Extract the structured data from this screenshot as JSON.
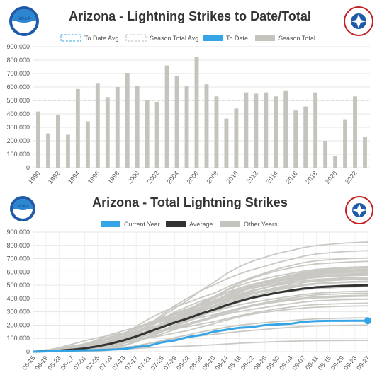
{
  "logos": {
    "noaa": "NOAA",
    "nws": "NATIONAL WEATHER SERVICE"
  },
  "colors": {
    "season": "#c4c3bc",
    "todate": "#35a5e5",
    "avg": "#333333",
    "other": "#c9c8c2",
    "avgline": "#bbbbbb",
    "grid": "#e6e6e6"
  },
  "chart_data": [
    {
      "type": "bar",
      "title": "Arizona - Lightning Strikes to Date/Total",
      "legend": [
        "To Date Avg",
        "Season Total Avg",
        "To Date",
        "Season Total"
      ],
      "legend_placement": "top",
      "ylim": [
        0,
        900000
      ],
      "yticks": [
        "0",
        "100,000",
        "200,000",
        "300,000",
        "400,000",
        "500,000",
        "600,000",
        "700,000",
        "800,000",
        "900,000"
      ],
      "xtick_labels": [
        "1990",
        "1992",
        "1994",
        "1996",
        "1998",
        "2000",
        "2002",
        "2004",
        "2006",
        "2008",
        "2010",
        "2012",
        "2014",
        "2016",
        "2018",
        "2020",
        "2022"
      ],
      "categories": [
        1990,
        1991,
        1992,
        1993,
        1994,
        1995,
        1996,
        1997,
        1998,
        1999,
        2000,
        2001,
        2002,
        2003,
        2004,
        2005,
        2006,
        2007,
        2008,
        2009,
        2010,
        2011,
        2012,
        2013,
        2014,
        2015,
        2016,
        2017,
        2018,
        2019,
        2020,
        2021,
        2022,
        2023
      ],
      "series": [
        {
          "name": "Season Total",
          "values": [
            418000,
            255000,
            395000,
            245000,
            585000,
            345000,
            630000,
            525000,
            600000,
            705000,
            610000,
            500000,
            490000,
            760000,
            680000,
            605000,
            825000,
            620000,
            530000,
            365000,
            440000,
            560000,
            550000,
            560000,
            530000,
            575000,
            425000,
            455000,
            560000,
            200000,
            85000,
            360000,
            530000,
            228000
          ]
        }
      ],
      "season_total_avg": 500000,
      "grid": true
    },
    {
      "type": "line",
      "title": "Arizona - Total Lightning Strikes",
      "legend": [
        "Current Year",
        "Average",
        "Other Years"
      ],
      "legend_placement": "top",
      "ylim": [
        0,
        900000
      ],
      "yticks": [
        "0",
        "100,000",
        "200,000",
        "300,000",
        "400,000",
        "500,000",
        "600,000",
        "700,000",
        "800,000",
        "900,000"
      ],
      "xtick_labels": [
        "06-15",
        "06-19",
        "06-23",
        "06-27",
        "07-01",
        "07-05",
        "07-09",
        "07-13",
        "07-17",
        "07-21",
        "07-25",
        "07-29",
        "08-02",
        "08-06",
        "08-10",
        "08-14",
        "08-18",
        "08-22",
        "08-26",
        "08-30",
        "09-03",
        "09-07",
        "09-11",
        "09-15",
        "09-19",
        "09-23",
        "09-27"
      ],
      "current_year": {
        "name": "Current Year",
        "values": [
          0,
          2000,
          5000,
          8000,
          10000,
          12000,
          15000,
          20000,
          35000,
          45000,
          70000,
          85000,
          110000,
          125000,
          150000,
          165000,
          180000,
          185000,
          200000,
          205000,
          210000,
          225000,
          230000,
          232000,
          232000,
          233000,
          233000
        ]
      },
      "average": {
        "name": "Average",
        "values": [
          0,
          3000,
          8000,
          15000,
          25000,
          40000,
          60000,
          85000,
          115000,
          150000,
          185000,
          220000,
          250000,
          285000,
          315000,
          350000,
          380000,
          405000,
          425000,
          445000,
          460000,
          475000,
          485000,
          490000,
          495000,
          498000,
          500000
        ]
      },
      "other_years_finals": [
        825000,
        760000,
        705000,
        680000,
        640000,
        630000,
        620000,
        615000,
        610000,
        600000,
        600000,
        590000,
        585000,
        575000,
        560000,
        560000,
        550000,
        545000,
        530000,
        530000,
        525000,
        500000,
        490000,
        455000,
        440000,
        425000,
        418000,
        395000,
        365000,
        345000,
        255000,
        200000,
        85000
      ],
      "grid": true
    }
  ]
}
